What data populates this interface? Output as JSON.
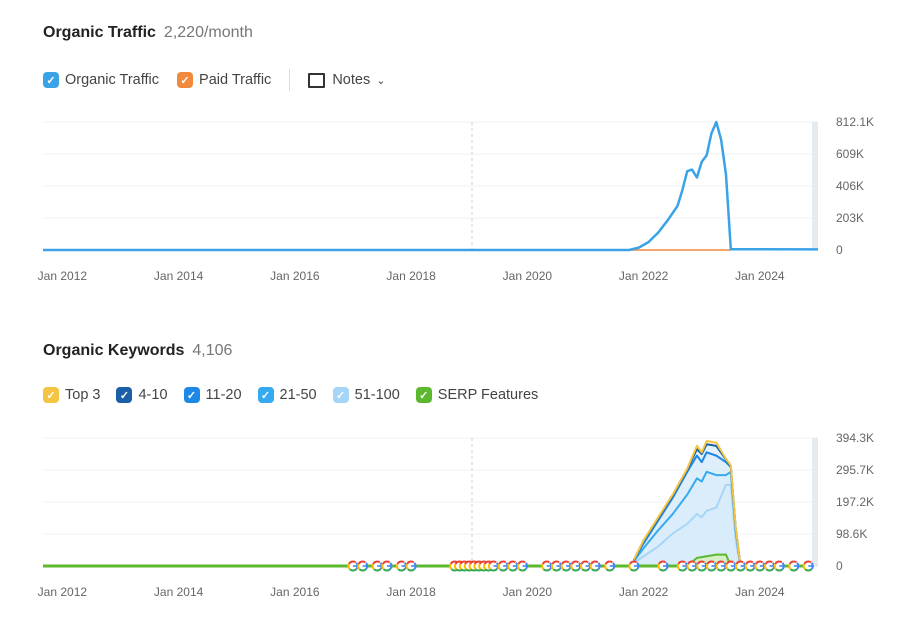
{
  "traffic": {
    "title": "Organic Traffic",
    "subtitle": "2,220/month",
    "legend": [
      {
        "label": "Organic Traffic",
        "color": "#3aa3e8"
      },
      {
        "label": "Paid Traffic",
        "color": "#f08a3c"
      }
    ],
    "notes_label": "Notes"
  },
  "keywords": {
    "title": "Organic Keywords",
    "subtitle": "4,106",
    "legend": [
      {
        "label": "Top 3",
        "color": "#f4c542"
      },
      {
        "label": "4-10",
        "color": "#1a5fa8"
      },
      {
        "label": "11-20",
        "color": "#1e88e5"
      },
      {
        "label": "21-50",
        "color": "#35aaf0"
      },
      {
        "label": "51-100",
        "color": "#a6d6f7"
      },
      {
        "label": "SERP Features",
        "color": "#5cb82e"
      }
    ]
  },
  "chart_data": [
    {
      "type": "line",
      "xrange": [
        "2011-09",
        "2025-01"
      ],
      "ylim": [
        0,
        812100
      ],
      "grid": true,
      "x_ticks": [
        "Jan 2012",
        "Jan 2014",
        "Jan 2016",
        "Jan 2018",
        "Jan 2020",
        "Jan 2022",
        "Jan 2024"
      ],
      "y_ticks": [
        "812.1K",
        "609K",
        "406K",
        "203K",
        "0"
      ],
      "series": [
        {
          "name": "Organic Traffic",
          "color": "#3aa3e8",
          "points": [
            [
              "2011-09",
              0
            ],
            [
              "2021-10",
              0
            ],
            [
              "2021-12",
              15000
            ],
            [
              "2022-02",
              50000
            ],
            [
              "2022-04",
              110000
            ],
            [
              "2022-06",
              190000
            ],
            [
              "2022-08",
              280000
            ],
            [
              "2022-09",
              380000
            ],
            [
              "2022-10",
              500000
            ],
            [
              "2022-11",
              510000
            ],
            [
              "2022-12",
              460000
            ],
            [
              "2023-01",
              560000
            ],
            [
              "2023-02",
              600000
            ],
            [
              "2023-03",
              740000
            ],
            [
              "2023-04",
              812000
            ],
            [
              "2023-05",
              700000
            ],
            [
              "2023-06",
              480000
            ],
            [
              "2023-07",
              5000
            ],
            [
              "2025-01",
              4000
            ]
          ]
        },
        {
          "name": "Paid Traffic",
          "color": "#f08a3c",
          "points": [
            [
              "2021-10",
              0
            ],
            [
              "2023-07",
              0
            ]
          ]
        }
      ]
    },
    {
      "type": "area",
      "stacked": true,
      "xrange": [
        "2011-09",
        "2025-01"
      ],
      "ylim": [
        0,
        394300
      ],
      "grid": true,
      "x_ticks": [
        "Jan 2012",
        "Jan 2014",
        "Jan 2016",
        "Jan 2018",
        "Jan 2020",
        "Jan 2022",
        "Jan 2024"
      ],
      "y_ticks": [
        "394.3K",
        "295.7K",
        "197.2K",
        "98.6K",
        "0"
      ],
      "x": [
        "2021-11",
        "2022-01",
        "2022-04",
        "2022-07",
        "2022-10",
        "2022-12",
        "2023-01",
        "2023-02",
        "2023-04",
        "2023-06",
        "2023-07",
        "2023-08",
        "2023-09"
      ],
      "series": [
        {
          "name": "51-100",
          "values": [
            10000,
            30000,
            60000,
            100000,
            130000,
            160000,
            150000,
            170000,
            180000,
            250000,
            250000,
            80000,
            0
          ]
        },
        {
          "name": "21-50",
          "values": [
            5000,
            25000,
            50000,
            60000,
            90000,
            110000,
            110000,
            120000,
            100000,
            30000,
            40000,
            30000,
            0
          ]
        },
        {
          "name": "11-20",
          "values": [
            3000,
            15000,
            30000,
            50000,
            70000,
            70000,
            60000,
            60000,
            60000,
            40000,
            15000,
            5000,
            0
          ]
        },
        {
          "name": "4-10",
          "values": [
            1000,
            8000,
            7000,
            7000,
            7000,
            20000,
            25000,
            25000,
            30000,
            8000,
            3000,
            3000,
            0
          ]
        },
        {
          "name": "Top 3",
          "values": [
            1000,
            2000,
            3000,
            3000,
            3000,
            10000,
            5000,
            10000,
            10000,
            2000,
            2000,
            2000,
            0
          ]
        }
      ],
      "serp_features": [
        [
          "2022-10",
          0
        ],
        [
          "2022-12",
          25000
        ],
        [
          "2023-02",
          30000
        ],
        [
          "2023-04",
          35000
        ],
        [
          "2023-06",
          35000
        ],
        [
          "2023-07",
          0
        ]
      ],
      "google_update_markers": [
        "2017-01",
        "2017-03",
        "2017-06",
        "2017-08",
        "2017-11",
        "2018-01",
        "2018-10",
        "2018-11",
        "2018-12",
        "2019-01",
        "2019-02",
        "2019-03",
        "2019-04",
        "2019-05",
        "2019-06",
        "2019-08",
        "2019-10",
        "2019-12",
        "2020-05",
        "2020-07",
        "2020-09",
        "2020-11",
        "2021-01",
        "2021-03",
        "2021-06",
        "2021-11",
        "2022-05",
        "2022-09",
        "2022-11",
        "2023-01",
        "2023-03",
        "2023-05",
        "2023-07",
        "2023-09",
        "2023-11",
        "2024-01",
        "2024-03",
        "2024-05",
        "2024-08",
        "2024-11"
      ]
    }
  ]
}
